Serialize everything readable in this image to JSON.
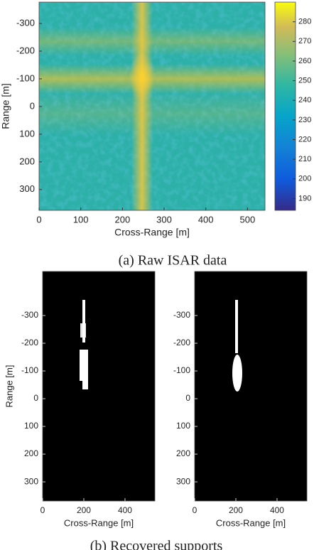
{
  "panel_a": {
    "xlabel": "Cross-Range [m]",
    "ylabel": "Range [m]",
    "xlim": [
      0,
      542
    ],
    "ylim": [
      -377,
      375
    ],
    "xticks": [
      0,
      100,
      200,
      300,
      400,
      500
    ],
    "yticks": [
      -300,
      -200,
      -100,
      0,
      100,
      200,
      300
    ],
    "colorbar": {
      "lim": [
        184,
        290
      ],
      "ticks": [
        190,
        200,
        210,
        220,
        230,
        240,
        250,
        260,
        270,
        280
      ]
    }
  },
  "caption_a": "(a) Raw ISAR data",
  "panel_b": [
    {
      "xlabel": "Cross-Range [m]",
      "ylabel": "Range [m]",
      "xlim": [
        0,
        545
      ],
      "ylim": [
        -459,
        369
      ],
      "xticks": [
        0,
        200,
        400
      ],
      "yticks": [
        -300,
        -200,
        -100,
        0,
        100,
        200,
        300
      ]
    },
    {
      "xlabel": "Cross-Range [m]",
      "xlim": [
        0,
        545
      ],
      "ylim": [
        -459,
        369
      ],
      "xticks": [
        0,
        200,
        400
      ],
      "yticks": [
        -300,
        -200,
        -100,
        0,
        100,
        200,
        300
      ]
    }
  ],
  "caption_b": "(b) Recovered supports"
}
